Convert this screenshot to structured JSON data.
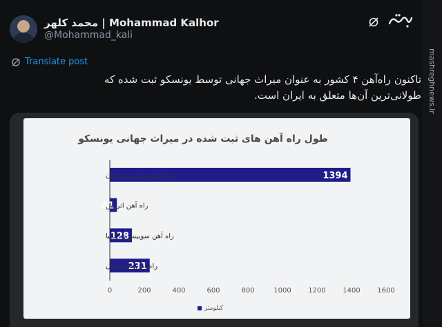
{
  "author": {
    "display_name": "محمد کلهر | Mohammad Kalhor",
    "handle": "@Mohammad_kali"
  },
  "actions": {
    "translate_label": "Translate post"
  },
  "tweet": {
    "text": "تاکنون راه‌آهن ۴ کشور به عنوان میراث جهانی توسط یونسکو ثبت شده که طولانی‌ترین آن‌ها متعلق به ایران است."
  },
  "watermark": {
    "site": "mashreghnews.ir"
  },
  "icons": {
    "grok": "grok-icon",
    "logo": "mashregh-logo",
    "translate": "translate-icon"
  },
  "colors": {
    "bar": "#1f1d8a",
    "link": "#1d9bf0"
  },
  "chart_data": {
    "type": "bar",
    "orientation": "horizontal",
    "title": "طول راه آهن های ثبت شده در میراث جهانی یونسکو",
    "categories": [
      "راه آهن سراسری ایران",
      "راه آهن اتریش",
      "راه آهن سوییس و ایتالیا",
      "راه آهن هندوستان"
    ],
    "values": [
      1394,
      41,
      128,
      231
    ],
    "xlim": [
      0,
      1600
    ],
    "xticks": [
      "0",
      "200",
      "400",
      "600",
      "800",
      "1000",
      "1200",
      "1400",
      "1600"
    ],
    "legend": "کیلومتر",
    "legend_placement": "bottom"
  }
}
